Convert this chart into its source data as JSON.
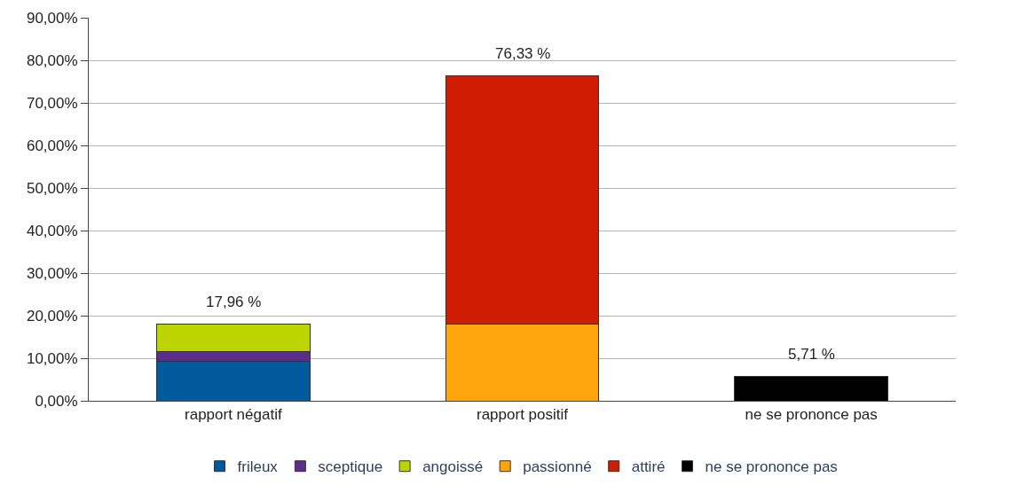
{
  "chart_data": {
    "type": "bar",
    "stacked": true,
    "categories": [
      "rapport négatif",
      "rapport positif",
      "ne se prononce pas"
    ],
    "series": [
      {
        "name": "frileux",
        "color": "#005a9c",
        "values": [
          9.3,
          null,
          null
        ]
      },
      {
        "name": "sceptique",
        "color": "#5c2d8a",
        "values": [
          2.2,
          null,
          null
        ]
      },
      {
        "name": "angoissé",
        "color": "#bcd400",
        "values": [
          6.46,
          null,
          null
        ]
      },
      {
        "name": "passionné",
        "color": "#ffa50c",
        "values": [
          null,
          18.0,
          null
        ]
      },
      {
        "name": "attiré",
        "color": "#d01c02",
        "values": [
          null,
          58.33,
          null
        ]
      },
      {
        "name": "ne se prononce pas",
        "color": "#000000",
        "values": [
          null,
          null,
          5.71
        ]
      }
    ],
    "totals": [
      "17,96 %",
      "76,33 %",
      "5,71 %"
    ],
    "ylim": [
      0,
      90
    ],
    "yticks": [
      {
        "value": 0,
        "label": "0,00%"
      },
      {
        "value": 10,
        "label": "10,00%"
      },
      {
        "value": 20,
        "label": "20,00%"
      },
      {
        "value": 30,
        "label": "30,00%"
      },
      {
        "value": 40,
        "label": "40,00%"
      },
      {
        "value": 50,
        "label": "50,00%"
      },
      {
        "value": 60,
        "label": "60,00%"
      },
      {
        "value": 70,
        "label": "70,00%"
      },
      {
        "value": 80,
        "label": "80,00%"
      },
      {
        "value": 90,
        "label": "90,00%"
      }
    ],
    "grid": "y",
    "legend": "bottom"
  }
}
